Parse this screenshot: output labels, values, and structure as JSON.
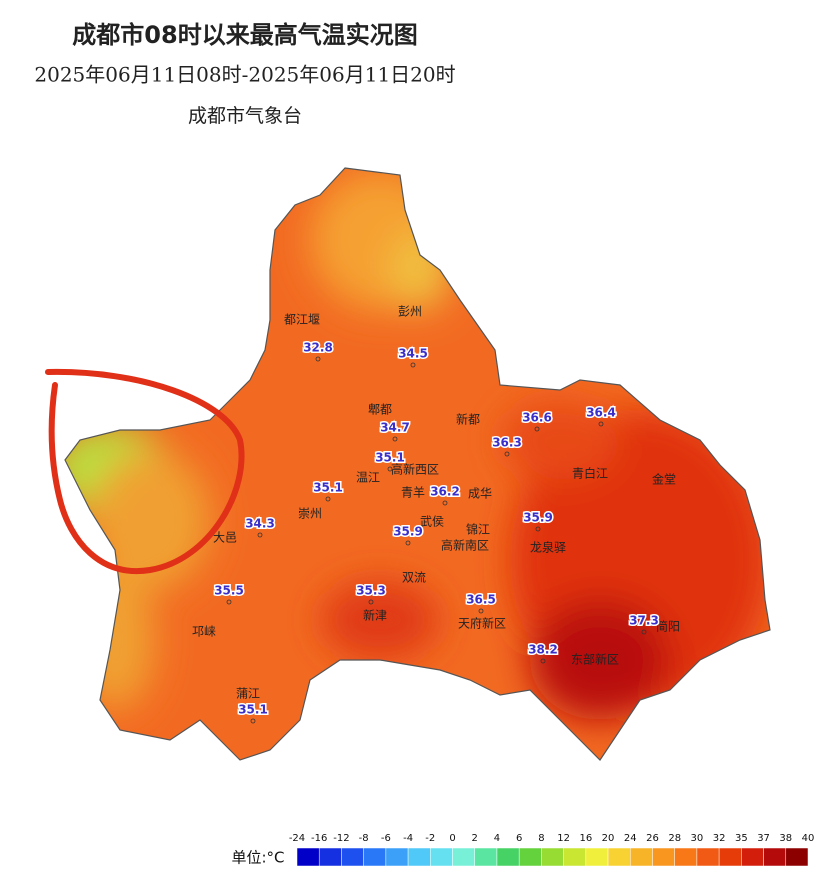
{
  "header": {
    "title": "成都市08时以来最高气温实况图",
    "time_range": "2025年06月11日08时-2025年06月11日20时",
    "issuer": "成都市气象台"
  },
  "places": [
    "都江堰",
    "彭州",
    "郫都",
    "新都",
    "温江",
    "高新西区",
    "青羊",
    "成华",
    "崇州",
    "大邑",
    "武侯",
    "高新南区",
    "锦江",
    "龙泉驿",
    "青白江",
    "金堂",
    "双流",
    "邛崃",
    "新津",
    "天府新区",
    "东部新区",
    "简阳",
    "蒲江"
  ],
  "stations": [
    32.8,
    34.5,
    34.7,
    36.6,
    36.4,
    36.3,
    35.1,
    35.1,
    36.2,
    35.9,
    34.3,
    35.9,
    35.5,
    35.3,
    36.5,
    37.3,
    38.2,
    35.1
  ],
  "legend": {
    "unit_label": "单位:°C",
    "ticks": [
      -24,
      -16,
      -12,
      -8,
      -6,
      -4,
      -2,
      0,
      2,
      4,
      6,
      8,
      12,
      16,
      20,
      24,
      26,
      28,
      30,
      32,
      35,
      37,
      38,
      40
    ],
    "colors": [
      "#0000c8",
      "#1430e0",
      "#1e50f0",
      "#2878f8",
      "#3ca0f8",
      "#50c8f8",
      "#64e0f0",
      "#78f0d8",
      "#5ae6a0",
      "#46d264",
      "#64d23c",
      "#96dc32",
      "#c8e632",
      "#f0f03c",
      "#f8d232",
      "#f8b428",
      "#f89620",
      "#f87818",
      "#f05a14",
      "#e63c0a",
      "#d21e0a",
      "#b40a0a",
      "#8c0000"
    ]
  }
}
